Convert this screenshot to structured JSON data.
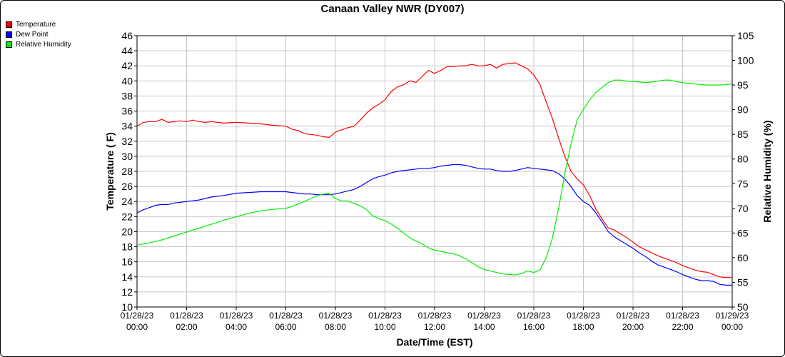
{
  "colors": {
    "temperature": "#ff0000",
    "dew_point": "#0000ff",
    "humidity": "#00ee00",
    "grid": "#c8c8c8"
  },
  "chart_data": {
    "type": "line",
    "title": "Canaan Valley NWR (DY007)",
    "xlabel": "Date/Time (EST)",
    "ylabel": "Temperature ( F)",
    "y2label": "Relative Humidity (%)",
    "ylim": [
      10,
      46
    ],
    "y2lim": [
      50,
      105
    ],
    "xlim_hours": [
      0,
      24
    ],
    "grid": true,
    "legend_position": "top-left",
    "y_ticks": [
      "10",
      "12",
      "14",
      "16",
      "18",
      "20",
      "22",
      "24",
      "26",
      "28",
      "30",
      "32",
      "34",
      "36",
      "38",
      "40",
      "42",
      "44",
      "46"
    ],
    "y2_ticks": [
      "50",
      "55",
      "60",
      "65",
      "70",
      "75",
      "80",
      "85",
      "90",
      "95",
      "100",
      "105"
    ],
    "x_ticks": [
      [
        "01/28/23",
        "00:00"
      ],
      [
        "01/28/23",
        "02:00"
      ],
      [
        "01/28/23",
        "04:00"
      ],
      [
        "01/28/23",
        "06:00"
      ],
      [
        "01/28/23",
        "08:00"
      ],
      [
        "01/28/23",
        "10:00"
      ],
      [
        "01/28/23",
        "12:00"
      ],
      [
        "01/28/23",
        "14:00"
      ],
      [
        "01/28/23",
        "16:00"
      ],
      [
        "01/28/23",
        "18:00"
      ],
      [
        "01/28/23",
        "20:00"
      ],
      [
        "01/28/23",
        "22:00"
      ],
      [
        "01/29/23",
        "00:00"
      ]
    ],
    "series": [
      {
        "name": "Temperature",
        "axis": "left",
        "x": [
          0,
          0.25,
          0.5,
          0.75,
          1,
          1.25,
          1.5,
          1.75,
          2,
          2.25,
          2.5,
          2.75,
          3,
          3.5,
          4,
          4.5,
          5,
          5.5,
          6,
          6.25,
          6.5,
          6.75,
          7,
          7.25,
          7.5,
          7.75,
          8,
          8.25,
          8.5,
          8.75,
          9,
          9.25,
          9.5,
          9.75,
          10,
          10.25,
          10.5,
          10.75,
          11,
          11.25,
          11.5,
          11.75,
          12,
          12.25,
          12.5,
          12.75,
          13,
          13.25,
          13.5,
          13.75,
          14,
          14.25,
          14.5,
          14.75,
          15,
          15.25,
          15.5,
          15.75,
          16,
          16.25,
          16.5,
          16.75,
          17,
          17.25,
          17.5,
          17.75,
          18,
          18.25,
          18.5,
          18.75,
          19,
          19.25,
          19.5,
          19.75,
          20,
          20.25,
          20.5,
          20.75,
          21,
          21.25,
          21.5,
          21.75,
          22,
          22.25,
          22.5,
          22.75,
          23,
          23.25,
          23.5,
          23.75,
          24
        ],
        "y": [
          34.0,
          34.5,
          34.6,
          34.6,
          34.9,
          34.5,
          34.6,
          34.7,
          34.6,
          34.8,
          34.6,
          34.5,
          34.6,
          34.4,
          34.5,
          34.4,
          34.3,
          34.1,
          34.0,
          33.6,
          33.4,
          33.0,
          32.9,
          32.8,
          32.6,
          32.5,
          33.2,
          33.5,
          33.8,
          34.0,
          34.8,
          35.7,
          36.4,
          36.9,
          37.5,
          38.6,
          39.2,
          39.5,
          40.0,
          39.8,
          40.6,
          41.4,
          41.0,
          41.4,
          41.9,
          41.9,
          42.0,
          42.0,
          42.2,
          42.0,
          42.0,
          42.2,
          41.7,
          42.2,
          42.3,
          42.4,
          42.0,
          41.6,
          40.8,
          39.5,
          37.2,
          35.0,
          32.4,
          30.0,
          28.0,
          27.0,
          26.2,
          24.8,
          23.0,
          21.7,
          20.5,
          20.2,
          19.7,
          19.2,
          18.6,
          18.0,
          17.6,
          17.2,
          16.8,
          16.5,
          16.2,
          15.9,
          15.5,
          15.2,
          14.9,
          14.7,
          14.6,
          14.3,
          14.0,
          13.9,
          13.9
        ],
        "color": "#ff0000"
      },
      {
        "name": "Dew Point",
        "axis": "left",
        "x": [
          0,
          0.25,
          0.5,
          0.75,
          1,
          1.25,
          1.5,
          1.75,
          2,
          2.25,
          2.5,
          2.75,
          3,
          3.5,
          4,
          4.5,
          5,
          5.5,
          6,
          6.25,
          6.5,
          6.75,
          7,
          7.25,
          7.5,
          7.75,
          8,
          8.25,
          8.5,
          8.75,
          9,
          9.25,
          9.5,
          9.75,
          10,
          10.25,
          10.5,
          10.75,
          11,
          11.25,
          11.5,
          11.75,
          12,
          12.25,
          12.5,
          12.75,
          13,
          13.25,
          13.5,
          13.75,
          14,
          14.25,
          14.5,
          14.75,
          15,
          15.25,
          15.5,
          15.75,
          16,
          16.25,
          16.5,
          16.75,
          17,
          17.25,
          17.5,
          17.75,
          18,
          18.25,
          18.5,
          18.75,
          19,
          19.25,
          19.5,
          19.75,
          20,
          20.25,
          20.5,
          20.75,
          21,
          21.25,
          21.5,
          21.75,
          22,
          22.25,
          22.5,
          22.75,
          23,
          23.25,
          23.5,
          23.75,
          24
        ],
        "y": [
          22.5,
          22.9,
          23.2,
          23.5,
          23.6,
          23.6,
          23.8,
          23.9,
          24.0,
          24.1,
          24.2,
          24.4,
          24.6,
          24.8,
          25.1,
          25.2,
          25.3,
          25.3,
          25.3,
          25.2,
          25.1,
          25.0,
          25.0,
          24.9,
          24.9,
          24.9,
          25.0,
          25.2,
          25.4,
          25.6,
          26.0,
          26.5,
          27.0,
          27.3,
          27.5,
          27.8,
          28.0,
          28.1,
          28.2,
          28.3,
          28.4,
          28.4,
          28.5,
          28.7,
          28.8,
          28.9,
          28.9,
          28.8,
          28.6,
          28.4,
          28.3,
          28.3,
          28.1,
          28.0,
          28.0,
          28.1,
          28.3,
          28.5,
          28.4,
          28.3,
          28.2,
          28.1,
          27.7,
          27.0,
          26.0,
          24.8,
          24.0,
          23.5,
          22.5,
          21.3,
          20.0,
          19.3,
          18.8,
          18.3,
          17.8,
          17.2,
          16.7,
          16.1,
          15.6,
          15.3,
          15.0,
          14.7,
          14.3,
          14.0,
          13.7,
          13.5,
          13.5,
          13.4,
          13.0,
          12.9,
          12.9
        ],
        "color": "#0000ff"
      },
      {
        "name": "Relative Humidity",
        "axis": "right",
        "x": [
          0,
          0.25,
          0.5,
          0.75,
          1,
          1.25,
          1.5,
          1.75,
          2,
          2.25,
          2.5,
          2.75,
          3,
          3.5,
          4,
          4.5,
          5,
          5.5,
          6,
          6.25,
          6.5,
          6.75,
          7,
          7.25,
          7.5,
          7.75,
          8,
          8.25,
          8.5,
          8.75,
          9,
          9.25,
          9.5,
          9.75,
          10,
          10.25,
          10.5,
          10.75,
          11,
          11.25,
          11.5,
          11.75,
          12,
          12.25,
          12.5,
          12.75,
          13,
          13.25,
          13.5,
          13.75,
          14,
          14.25,
          14.5,
          14.75,
          15,
          15.25,
          15.5,
          15.75,
          16,
          16.25,
          16.5,
          16.75,
          17,
          17.25,
          17.5,
          17.75,
          18,
          18.25,
          18.5,
          18.75,
          19,
          19.25,
          19.5,
          19.75,
          20,
          20.25,
          20.5,
          20.75,
          21,
          21.25,
          21.5,
          21.75,
          22,
          22.25,
          22.5,
          22.75,
          23,
          23.25,
          23.5,
          23.75,
          24
        ],
        "y": [
          62.5,
          62.8,
          63.0,
          63.3,
          63.6,
          64.0,
          64.4,
          64.8,
          65.2,
          65.6,
          66.0,
          66.4,
          66.8,
          67.6,
          68.3,
          69.0,
          69.5,
          69.8,
          70.0,
          70.4,
          70.9,
          71.4,
          72.0,
          72.5,
          72.9,
          73.0,
          72.0,
          71.5,
          71.5,
          71.0,
          70.5,
          69.8,
          68.5,
          67.9,
          67.5,
          66.8,
          66.0,
          65.0,
          64.0,
          63.4,
          62.8,
          62.0,
          61.5,
          61.3,
          61.0,
          60.8,
          60.4,
          59.8,
          59.0,
          58.2,
          57.6,
          57.3,
          57.0,
          56.7,
          56.6,
          56.5,
          56.8,
          57.3,
          57.0,
          57.5,
          60.0,
          64.0,
          70.0,
          77.0,
          83.0,
          88.0,
          90.0,
          92.0,
          93.5,
          94.5,
          95.5,
          96.0,
          96.0,
          95.8,
          95.7,
          95.6,
          95.5,
          95.6,
          95.8,
          96.0,
          96.0,
          95.7,
          95.5,
          95.3,
          95.2,
          95.1,
          95.0,
          95.0,
          95.0,
          95.1,
          95.2
        ],
        "color": "#00ee00"
      }
    ]
  }
}
